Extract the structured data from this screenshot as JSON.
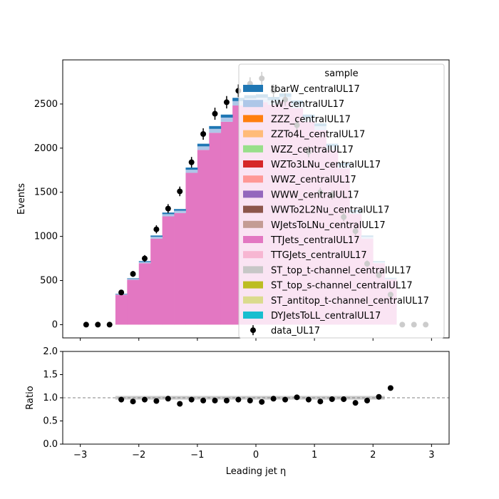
{
  "chart_data": [
    {
      "type": "bar",
      "panel": "main",
      "stacked": true,
      "ylabel": "Events",
      "xlim": [
        -3.3,
        3.3
      ],
      "ylim": [
        -150,
        3000
      ],
      "yticks": [
        0,
        500,
        1000,
        1500,
        2000,
        2500
      ],
      "ytick_labels": [
        "0",
        "500",
        "1000",
        "1500",
        "2000",
        "2500"
      ],
      "bin_edges": [
        -2.4,
        -2.2,
        -2.0,
        -1.8,
        -1.6,
        -1.4,
        -1.2,
        -1.0,
        -0.8,
        -0.6,
        -0.4,
        -0.2,
        0.0,
        0.2,
        0.4,
        0.6,
        0.8,
        1.0,
        1.2,
        1.4,
        1.6,
        1.8,
        2.0,
        2.2,
        2.4
      ],
      "mc_total": [
        350,
        525,
        720,
        1010,
        1270,
        1310,
        1780,
        2050,
        2250,
        2380,
        2570,
        2600,
        2610,
        2580,
        2620,
        2540,
        2380,
        2280,
        2050,
        1830,
        1300,
        1010,
        720,
        530
      ],
      "series": [
        {
          "name": "tbarW_centralUL17",
          "color": "#1f77b4",
          "values": [
            5,
            7,
            10,
            15,
            18,
            19,
            25,
            30,
            32,
            34,
            37,
            38,
            38,
            37,
            38,
            37,
            34,
            32,
            30,
            25,
            19,
            15,
            10,
            7
          ]
        },
        {
          "name": "tW_centralUL17",
          "color": "#aec7e8",
          "values": [
            7,
            10,
            14,
            20,
            25,
            26,
            35,
            40,
            44,
            47,
            50,
            51,
            51,
            50,
            51,
            50,
            47,
            44,
            40,
            35,
            26,
            20,
            14,
            10
          ]
        },
        {
          "name": "ZZZ_centralUL17",
          "color": "#ff7f0e",
          "values": [
            0,
            0,
            0,
            0,
            0,
            0,
            0,
            0,
            0,
            0,
            0,
            0,
            0,
            0,
            0,
            0,
            0,
            0,
            0,
            0,
            0,
            0,
            0,
            0
          ]
        },
        {
          "name": "ZZTo4L_centralUL17",
          "color": "#ffbb78",
          "values": [
            0,
            0,
            0,
            0,
            0,
            0,
            0,
            0,
            0,
            0,
            0,
            0,
            0,
            0,
            0,
            0,
            0,
            0,
            0,
            0,
            0,
            0,
            0,
            0
          ]
        },
        {
          "name": "WZZ_centralUL17",
          "color": "#98df8a",
          "values": [
            0,
            0,
            0,
            0,
            0,
            0,
            0,
            0,
            0,
            0,
            0,
            0,
            0,
            0,
            0,
            0,
            0,
            0,
            0,
            0,
            0,
            0,
            0,
            0
          ]
        },
        {
          "name": "WZTo3LNu_centralUL17",
          "color": "#d62728",
          "values": [
            0,
            0,
            0,
            0,
            0,
            0,
            0,
            0,
            0,
            0,
            0,
            0,
            0,
            0,
            0,
            0,
            0,
            0,
            0,
            0,
            0,
            0,
            0,
            0
          ]
        },
        {
          "name": "WWZ_centralUL17",
          "color": "#ff9896",
          "values": [
            0,
            0,
            0,
            0,
            0,
            0,
            0,
            0,
            0,
            0,
            0,
            0,
            0,
            0,
            0,
            0,
            0,
            0,
            0,
            0,
            0,
            0,
            0,
            0
          ]
        },
        {
          "name": "WWW_centralUL17",
          "color": "#9467bd",
          "values": [
            0,
            0,
            0,
            0,
            0,
            0,
            0,
            0,
            0,
            0,
            0,
            0,
            0,
            0,
            0,
            0,
            0,
            0,
            0,
            0,
            0,
            0,
            0,
            0
          ]
        },
        {
          "name": "WWTo2L2Nu_centralUL17",
          "color": "#8c564b",
          "values": [
            0,
            0,
            0,
            0,
            0,
            0,
            0,
            0,
            0,
            0,
            0,
            0,
            0,
            0,
            0,
            0,
            0,
            0,
            0,
            0,
            0,
            0,
            0,
            0
          ]
        },
        {
          "name": "WJetsToLNu_centralUL17",
          "color": "#c49c94",
          "values": [
            0,
            0,
            0,
            0,
            0,
            0,
            0,
            0,
            0,
            0,
            0,
            0,
            0,
            0,
            0,
            0,
            0,
            0,
            0,
            0,
            0,
            0,
            0,
            0
          ]
        },
        {
          "name": "TTJets_centralUL17",
          "color": "#e377c2",
          "values": [
            338,
            508,
            696,
            975,
            1227,
            1265,
            1720,
            1980,
            2174,
            2299,
            2483,
            2511,
            2521,
            2493,
            2531,
            2453,
            2299,
            2204,
            1980,
            1770,
            1255,
            975,
            696,
            513
          ]
        },
        {
          "name": "TTGJets_centralUL17",
          "color": "#f7b6d2",
          "values": [
            0,
            0,
            0,
            0,
            0,
            0,
            0,
            0,
            0,
            0,
            0,
            0,
            0,
            0,
            0,
            0,
            0,
            0,
            0,
            0,
            0,
            0,
            0,
            0
          ]
        },
        {
          "name": "ST_top_t-channel_centralUL17",
          "color": "#c7c7c7",
          "values": [
            0,
            0,
            0,
            0,
            0,
            0,
            0,
            0,
            0,
            0,
            0,
            0,
            0,
            0,
            0,
            0,
            0,
            0,
            0,
            0,
            0,
            0,
            0,
            0
          ]
        },
        {
          "name": "ST_top_s-channel_centralUL17",
          "color": "#bcbd22",
          "values": [
            0,
            0,
            0,
            0,
            0,
            0,
            0,
            0,
            0,
            0,
            0,
            0,
            0,
            0,
            0,
            0,
            0,
            0,
            0,
            0,
            0,
            0,
            0,
            0
          ]
        },
        {
          "name": "ST_antitop_t-channel_centralUL17",
          "color": "#dbdb8d",
          "values": [
            0,
            0,
            0,
            0,
            0,
            0,
            0,
            0,
            0,
            0,
            0,
            0,
            0,
            0,
            0,
            0,
            0,
            0,
            0,
            0,
            0,
            0,
            0,
            0
          ]
        },
        {
          "name": "DYJetsToLL_centralUL17",
          "color": "#17becf",
          "values": [
            0,
            0,
            0,
            0,
            0,
            0,
            0,
            0,
            0,
            0,
            0,
            0,
            0,
            0,
            0,
            0,
            0,
            0,
            0,
            0,
            0,
            0,
            0,
            0
          ]
        }
      ],
      "data": {
        "name": "data_UL17",
        "color": "#000000",
        "x": [
          -2.9,
          -2.7,
          -2.5,
          -2.3,
          -2.1,
          -1.9,
          -1.7,
          -1.5,
          -1.3,
          -1.1,
          -0.9,
          -0.7,
          -0.5,
          -0.3,
          -0.1,
          0.1,
          0.3,
          0.5,
          0.7,
          0.9,
          1.1,
          1.3,
          1.5,
          1.7,
          1.9,
          2.1,
          2.3,
          2.5,
          2.7,
          2.9
        ],
        "y": [
          0,
          0,
          0,
          365,
          575,
          750,
          1080,
          1315,
          1510,
          1840,
          2160,
          2390,
          2520,
          2650,
          2730,
          2790,
          2650,
          2550,
          2260,
          1960,
          1500,
          1470,
          1220,
          1060,
          690,
          560,
          340,
          0,
          0,
          0
        ]
      },
      "legend": {
        "title": "sample",
        "placement": "upper right"
      }
    },
    {
      "type": "scatter",
      "panel": "ratio",
      "xlabel": "Leading jet  η",
      "ylabel": "Ratio",
      "xlim": [
        -3.3,
        3.3
      ],
      "ylim": [
        0.0,
        2.0
      ],
      "xticks": [
        -3,
        -2,
        -1,
        0,
        1,
        2,
        3
      ],
      "xtick_labels": [
        "−3",
        "−2",
        "−1",
        "0",
        "1",
        "2",
        "3"
      ],
      "yticks": [
        0.0,
        0.5,
        1.0,
        1.5,
        2.0
      ],
      "ytick_labels": [
        "0.0",
        "0.5",
        "1.0",
        "1.5",
        "2.0"
      ],
      "reference_line": 1.0,
      "uncertainty_band": {
        "x_range": [
          -2.4,
          2.2
        ],
        "low": 0.96,
        "high": 1.04,
        "color": "#a0a0a0"
      },
      "x": [
        -2.3,
        -2.1,
        -1.9,
        -1.7,
        -1.5,
        -1.3,
        -1.1,
        -0.9,
        -0.7,
        -0.5,
        -0.3,
        -0.1,
        0.1,
        0.3,
        0.5,
        0.7,
        0.9,
        1.1,
        1.3,
        1.5,
        1.7,
        1.9,
        2.1,
        2.3
      ],
      "y": [
        0.96,
        0.92,
        0.96,
        0.93,
        0.98,
        0.87,
        0.96,
        0.94,
        0.94,
        0.94,
        0.96,
        0.94,
        0.91,
        0.98,
        0.96,
        1.01,
        0.96,
        0.92,
        0.97,
        0.97,
        0.89,
        0.94,
        1.02,
        1.21
      ]
    }
  ]
}
